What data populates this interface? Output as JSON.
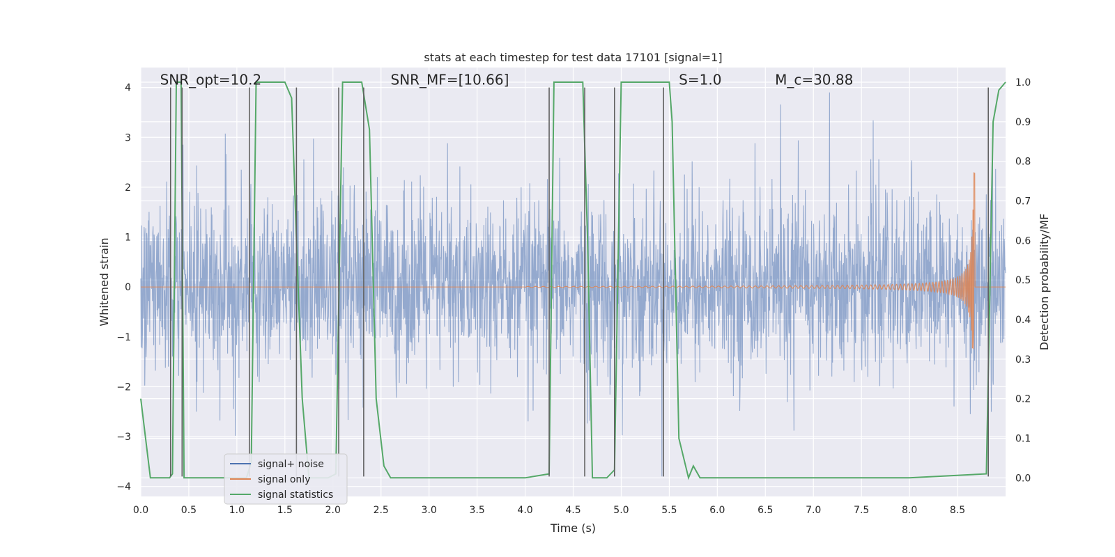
{
  "chart_data": {
    "type": "line",
    "title": "stats at each timestep for test data 17101 [signal=1]",
    "xlabel": "Time (s)",
    "ylabel": "Whitened strain",
    "y2label": "Detection probability/MF",
    "xlim": [
      0.0,
      9.0
    ],
    "ylim": [
      -4.2,
      4.4
    ],
    "y2lim": [
      -0.047,
      1.037
    ],
    "x_ticks": [
      "0.0",
      "0.5",
      "1.0",
      "1.5",
      "2.0",
      "2.5",
      "3.0",
      "3.5",
      "4.0",
      "4.5",
      "5.0",
      "5.5",
      "6.0",
      "6.5",
      "7.0",
      "7.5",
      "8.0",
      "8.5"
    ],
    "y_ticks": [
      "−4",
      "−3",
      "−2",
      "−1",
      "0",
      "1",
      "2",
      "3",
      "4"
    ],
    "y2_ticks": [
      "0.0",
      "0.1",
      "0.2",
      "0.3",
      "0.4",
      "0.5",
      "0.6",
      "0.7",
      "0.8",
      "0.9",
      "1.0"
    ],
    "grid": true,
    "background_color": "#eaeaf2",
    "annotations": [
      {
        "text": "SNR_opt=10.2",
        "x": 0.2,
        "y": 4.1
      },
      {
        "text": "SNR_MF=[10.66]",
        "x": 2.6,
        "y": 4.1
      },
      {
        "text": "S=1.0",
        "x": 5.6,
        "y": 4.1
      },
      {
        "text": "M_c=30.88",
        "x": 6.6,
        "y": 4.1
      }
    ],
    "legend": {
      "location": "lower-left",
      "entries": [
        "signal+ noise",
        "signal only",
        "signal statistics"
      ]
    },
    "series": [
      {
        "name": "signal+ noise",
        "color": "#4c72b0",
        "kind": "noise",
        "description_stats": {
          "typical_amplitude": 1.5,
          "peak_min": -3.8,
          "peak_max": 3.9
        }
      },
      {
        "name": "signal only",
        "color": "#dd8452",
        "kind": "chirp",
        "chirp": {
          "start_time": 4.0,
          "end_time": 8.68,
          "max_amplitude": 2.3,
          "merger_time": 8.65
        }
      },
      {
        "name": "signal statistics",
        "color": "#55a868",
        "axis": "right",
        "x": [
          0.0,
          0.05,
          0.1,
          0.2,
          0.3,
          0.33,
          0.37,
          0.42,
          0.45,
          0.5,
          0.55,
          0.6,
          0.65,
          1.0,
          1.1,
          1.15,
          1.2,
          1.3,
          1.5,
          1.57,
          1.62,
          1.68,
          1.75,
          1.85,
          1.95,
          2.03,
          2.1,
          2.15,
          2.3,
          2.38,
          2.45,
          2.53,
          2.6,
          3.0,
          4.0,
          4.25,
          4.3,
          4.6,
          4.65,
          4.7,
          4.85,
          4.93,
          5.0,
          5.5,
          5.53,
          5.6,
          5.7,
          5.75,
          5.82,
          5.9,
          6.0,
          7.0,
          8.0,
          8.8,
          8.87,
          8.93,
          9.0
        ],
        "y": [
          0.2,
          0.1,
          0.0,
          0.0,
          0.0,
          0.01,
          1.0,
          1.0,
          0.0,
          0.0,
          0.0,
          0.0,
          0.0,
          0.0,
          0.0,
          0.04,
          1.0,
          1.0,
          1.0,
          0.96,
          0.6,
          0.2,
          0.0,
          0.0,
          0.0,
          0.01,
          1.0,
          1.0,
          1.0,
          0.88,
          0.2,
          0.03,
          0.0,
          0.0,
          0.0,
          0.01,
          1.0,
          1.0,
          0.6,
          0.0,
          0.0,
          0.02,
          1.0,
          1.0,
          0.9,
          0.1,
          0.0,
          0.03,
          0.0,
          0.0,
          0.0,
          0.0,
          0.0,
          0.01,
          0.9,
          0.98,
          1.0
        ]
      }
    ],
    "vertical_lines": {
      "color": "#606060",
      "x": [
        0.31,
        0.43,
        1.13,
        1.62,
        2.06,
        2.32,
        4.25,
        4.62,
        4.93,
        5.44,
        8.82
      ],
      "y_range": [
        -3.8,
        4.0
      ]
    }
  }
}
